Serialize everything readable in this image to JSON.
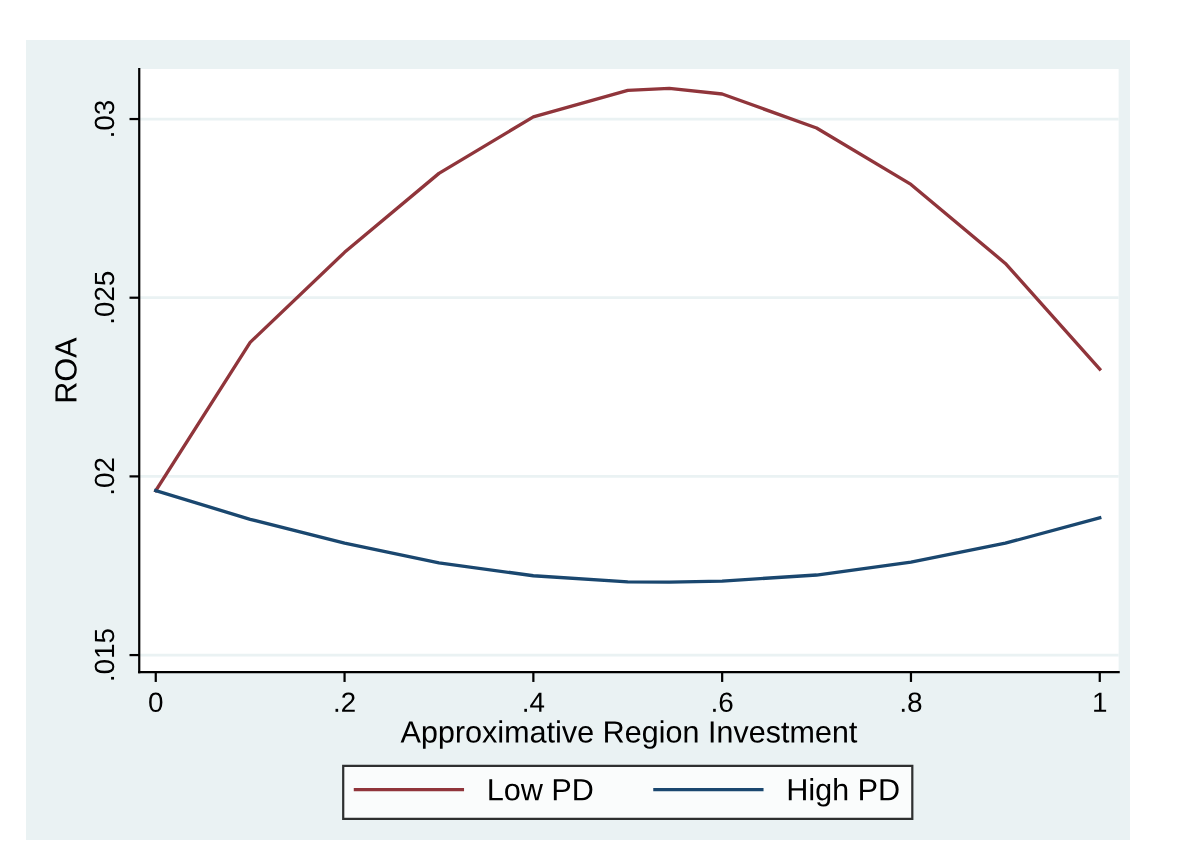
{
  "chart_data": {
    "type": "line",
    "xlabel": "Approximative Region Investment",
    "ylabel": "ROA",
    "x": [
      0,
      0.1,
      0.2,
      0.3,
      0.4,
      0.5,
      0.544,
      0.6,
      0.7,
      0.8,
      0.9,
      1
    ],
    "series": [
      {
        "name": "Low PD",
        "color": "#90353b",
        "values": [
          0.0196,
          0.02375,
          0.02627,
          0.02848,
          0.03006,
          0.0308,
          0.03086,
          0.0307,
          0.02975,
          0.02817,
          0.02596,
          0.023
        ]
      },
      {
        "name": "High PD",
        "color": "#1a476f",
        "values": [
          0.0196,
          0.0188,
          0.01813,
          0.01758,
          0.01722,
          0.01705,
          0.01704,
          0.01707,
          0.01724,
          0.0176,
          0.01813,
          0.01884
        ]
      }
    ],
    "xlim": [
      -0.0175,
      1.02
    ],
    "ylim": [
      0.01452,
      0.0314
    ],
    "xticks": [
      {
        "value": 0,
        "label": "0"
      },
      {
        "value": 0.2,
        "label": ".2"
      },
      {
        "value": 0.4,
        "label": ".4"
      },
      {
        "value": 0.6,
        "label": ".6"
      },
      {
        "value": 0.8,
        "label": ".8"
      },
      {
        "value": 1,
        "label": "1"
      }
    ],
    "yticks": [
      {
        "value": 0.015,
        "label": ".015"
      },
      {
        "value": 0.02,
        "label": ".02"
      },
      {
        "value": 0.025,
        "label": ".025"
      },
      {
        "value": 0.03,
        "label": ".03"
      }
    ],
    "grid": "y",
    "legend": "bottom",
    "marker": "none",
    "line_style": "solid"
  }
}
